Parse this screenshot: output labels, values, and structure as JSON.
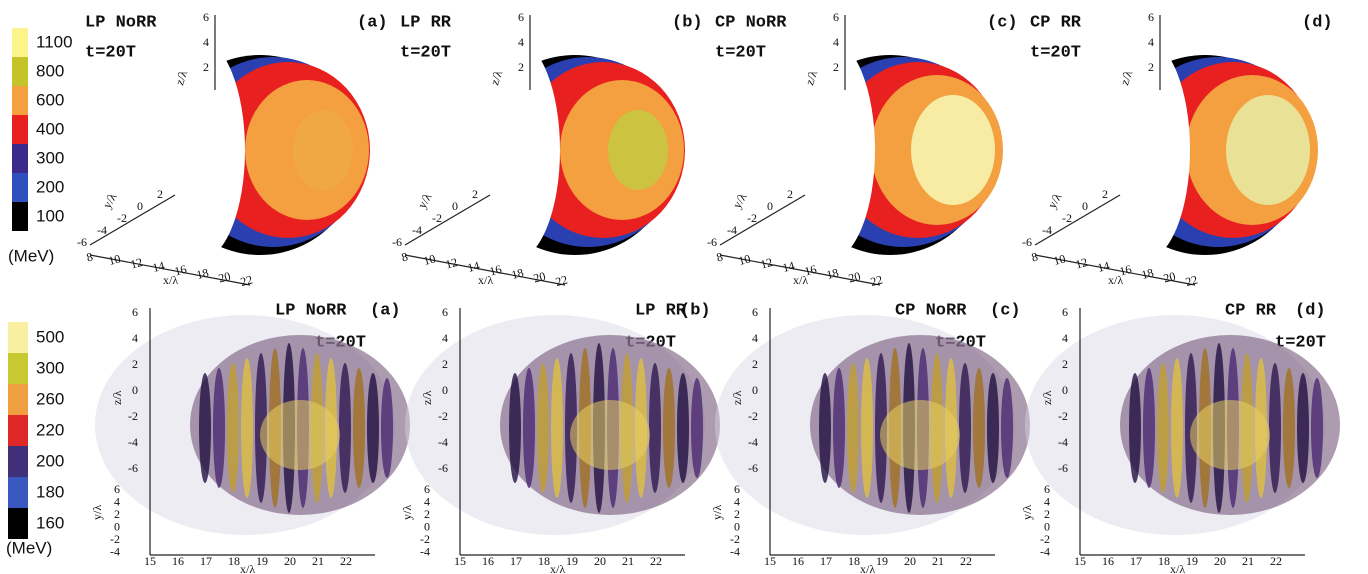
{
  "top": {
    "colorbar": {
      "labels": [
        "1100",
        "800",
        "600",
        "400",
        "300",
        "200",
        "100"
      ],
      "unit": "(MeV)"
    },
    "panels": [
      {
        "title": "LP NoRR",
        "time": "t=20T",
        "tag": "(a)"
      },
      {
        "title": "LP RR",
        "time": "t=20T",
        "tag": "(b)"
      },
      {
        "title": "CP NoRR",
        "time": "t=20T",
        "tag": "(c)"
      },
      {
        "title": "CP RR",
        "time": "t=20T",
        "tag": "(d)"
      }
    ],
    "axes": {
      "z_label": "z/λ",
      "y_label": "y/λ",
      "x_label": "x/λ",
      "z_ticks": [
        "2",
        "4",
        "6"
      ],
      "y_ticks": [
        "-6",
        "-4",
        "-2",
        "0",
        "2"
      ],
      "x_ticks": [
        "8",
        "10",
        "12",
        "14",
        "16",
        "18",
        "20",
        "22"
      ]
    }
  },
  "bottom": {
    "colorbar": {
      "labels": [
        "500",
        "300",
        "260",
        "220",
        "200",
        "180",
        "160"
      ],
      "unit": "(MeV)"
    },
    "panels": [
      {
        "title": "LP NoRR",
        "time": "t=20T",
        "tag": "(a)"
      },
      {
        "title": "LP RR",
        "time": "t=20T",
        "tag": "(b)"
      },
      {
        "title": "CP NoRR",
        "time": "t=20T",
        "tag": "(c)"
      },
      {
        "title": "CP RR",
        "time": "t=20T",
        "tag": "(d)"
      }
    ],
    "axes": {
      "z_label": "z/λ",
      "y_label": "y/λ",
      "x_label": "x/λ",
      "z_ticks": [
        "6",
        "4",
        "2",
        "0",
        "-2",
        "-4",
        "-6"
      ],
      "y_ticks": [
        "6",
        "4",
        "2",
        "0",
        "-2",
        "-4"
      ],
      "x_ticks": [
        "15",
        "16",
        "17",
        "18",
        "19",
        "20",
        "21",
        "22"
      ]
    }
  }
}
